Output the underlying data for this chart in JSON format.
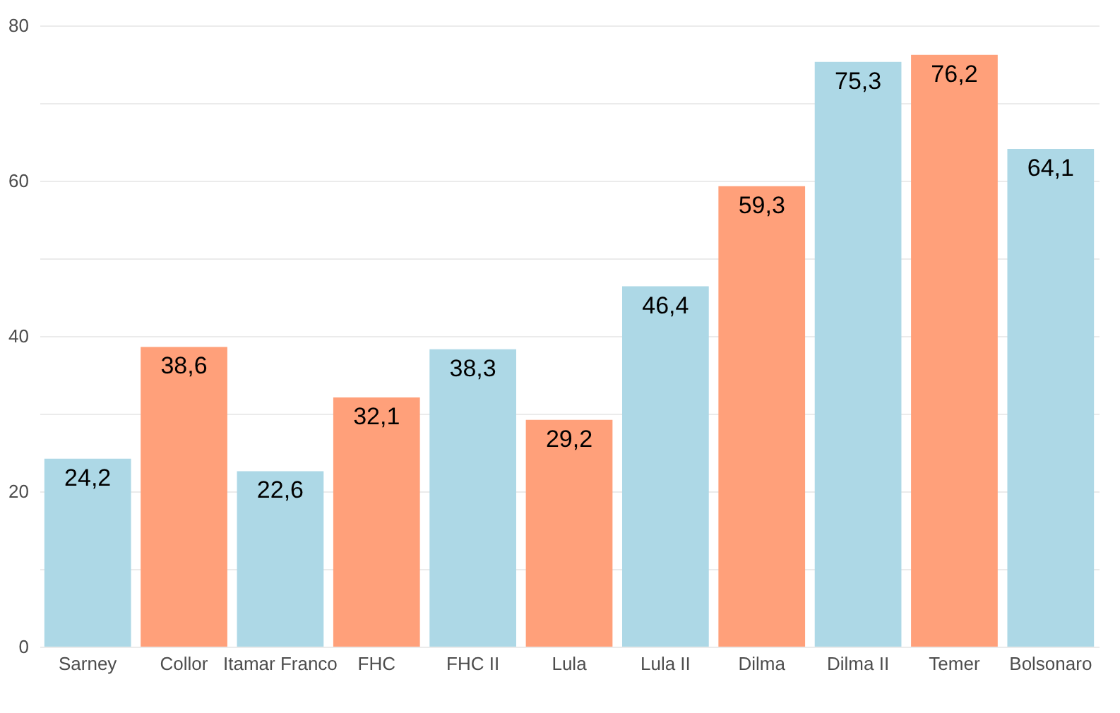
{
  "chart_data": {
    "type": "bar",
    "categories": [
      "Sarney",
      "Collor",
      "Itamar Franco",
      "FHC",
      "FHC II",
      "Lula",
      "Lula II",
      "Dilma",
      "Dilma II",
      "Temer",
      "Bolsonaro"
    ],
    "values": [
      24.2,
      38.6,
      22.6,
      32.1,
      38.3,
      29.2,
      46.4,
      59.3,
      75.3,
      76.2,
      64.1
    ],
    "value_labels": [
      "24,2",
      "38,6",
      "22,6",
      "32,1",
      "38,3",
      "29,2",
      "46,4",
      "59,3",
      "75,3",
      "76,2",
      "64,1"
    ],
    "colors": [
      "#add8e6",
      "#ffa07a",
      "#add8e6",
      "#ffa07a",
      "#add8e6",
      "#ffa07a",
      "#add8e6",
      "#ffa07a",
      "#add8e6",
      "#ffa07a",
      "#add8e6"
    ],
    "ylim": [
      0,
      80
    ],
    "yticks": [
      0,
      {
        "value": 10,
        "label": null
      },
      20,
      {
        "value": 30,
        "label": null
      },
      40,
      {
        "value": 50,
        "label": null
      },
      60,
      {
        "value": 70,
        "label": null
      },
      80
    ],
    "grid": true
  }
}
